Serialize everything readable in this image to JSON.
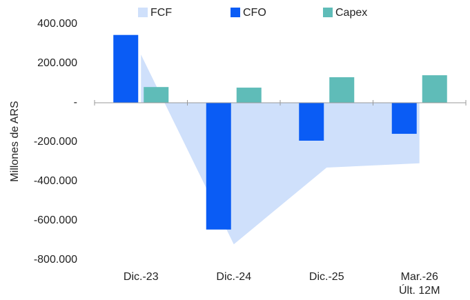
{
  "chart_data": {
    "type": "bar",
    "y_label": "Millones de ARS",
    "categories": [
      "Dic.-23",
      "Dic.-24",
      "Dic.-25",
      "Mar.-26\nÚlt. 12M"
    ],
    "series": [
      {
        "name": "FCF",
        "type": "area",
        "color": "#cfe0fb",
        "values": [
          245000,
          -720000,
          -330000,
          -308000
        ]
      },
      {
        "name": "CFO",
        "type": "bar",
        "color": "#0a5cf5",
        "values": [
          345000,
          -645000,
          -193000,
          -158000
        ]
      },
      {
        "name": "Capex",
        "type": "bar",
        "color": "#5fbcb8",
        "values": [
          80000,
          77000,
          130000,
          140000
        ]
      }
    ],
    "ylim": [
      -800000,
      400000
    ],
    "yticks": [
      {
        "value": 400000,
        "label": "400.000"
      },
      {
        "value": 200000,
        "label": "200.000"
      },
      {
        "value": 0,
        "label": "-"
      },
      {
        "value": -200000,
        "label": "-200.000"
      },
      {
        "value": -400000,
        "label": "-400.000"
      },
      {
        "value": -600000,
        "label": "-600.000"
      },
      {
        "value": -800000,
        "label": "-800.000"
      }
    ],
    "legend": "top"
  }
}
